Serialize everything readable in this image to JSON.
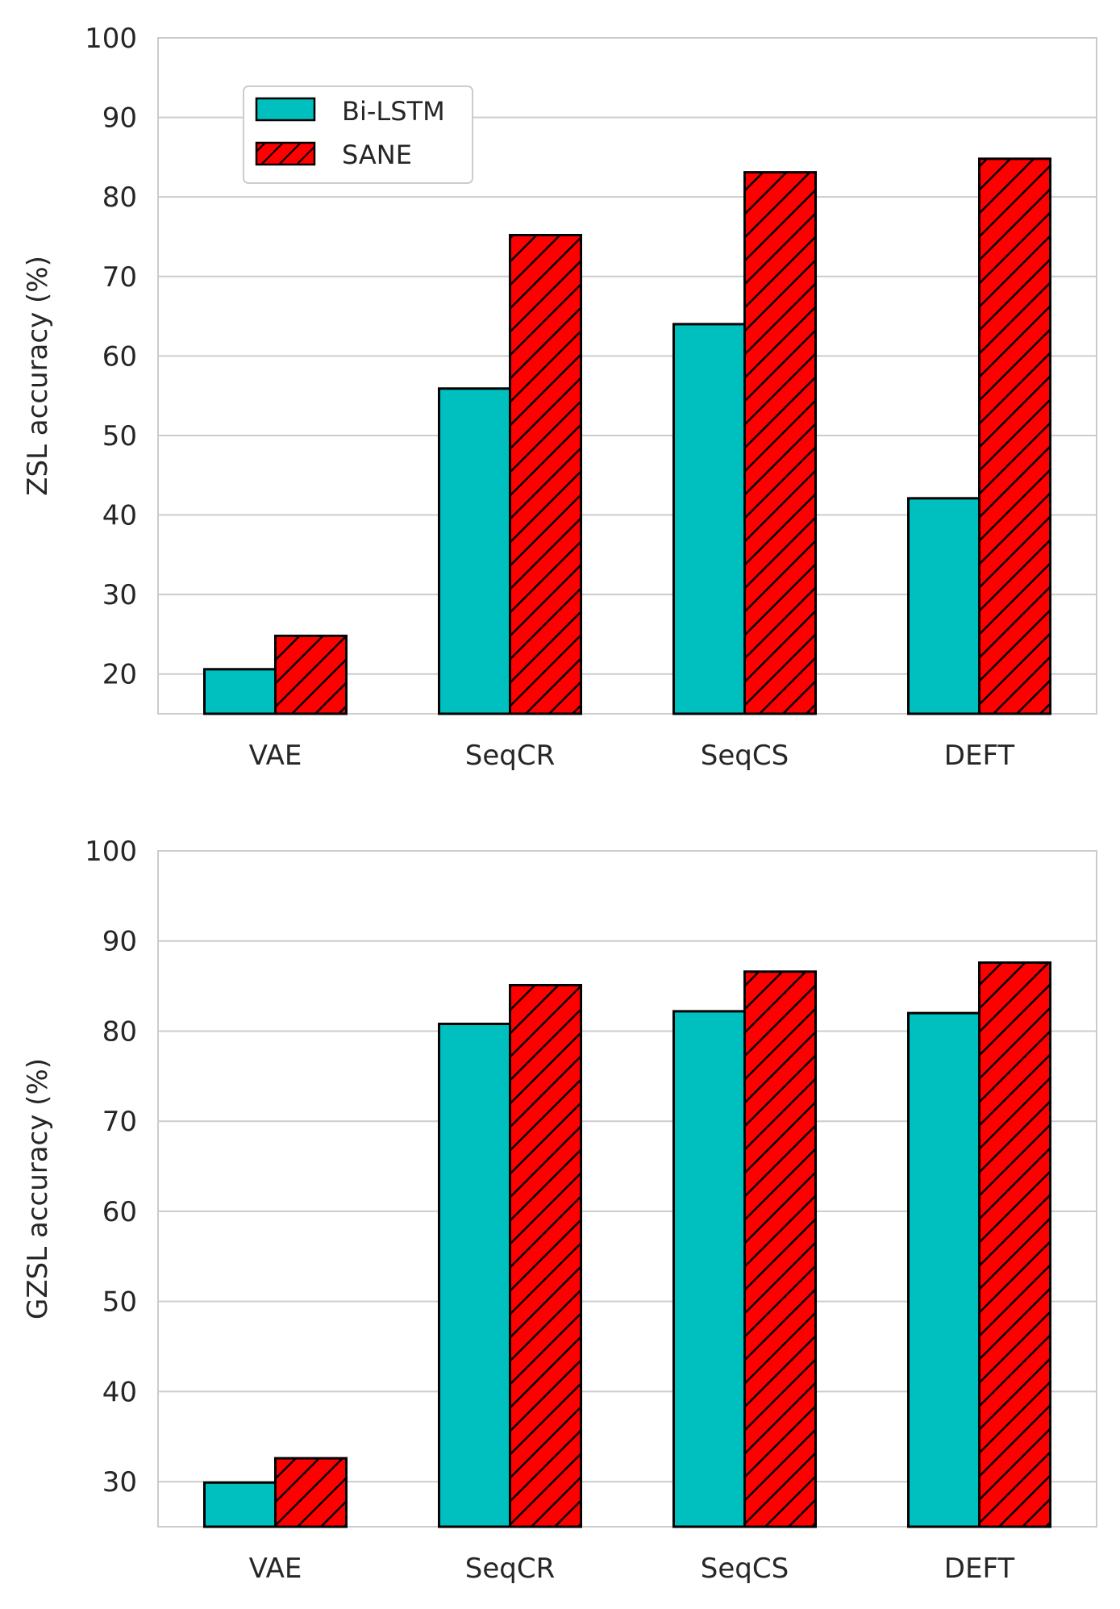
{
  "colors": {
    "bi_lstm": "#00bfbf",
    "sane": "#ff0000",
    "grid": "#cccccc",
    "text": "#262626"
  },
  "legend": {
    "entries": [
      "Bi-LSTM",
      "SANE"
    ],
    "placement": "upper-left"
  },
  "chart_data": [
    {
      "type": "bar",
      "categories": [
        "VAE",
        "SeqCR",
        "SeqCS",
        "DEFT"
      ],
      "series": [
        {
          "name": "Bi-LSTM",
          "values": [
            20.6,
            55.9,
            64.0,
            42.1
          ],
          "hatch": "none"
        },
        {
          "name": "SANE",
          "values": [
            24.8,
            75.2,
            83.1,
            84.8
          ],
          "hatch": "diagonal"
        }
      ],
      "title": "",
      "xlabel": "",
      "ylabel": "ZSL accuracy (%)",
      "ylim": [
        15,
        100
      ],
      "yticks": [
        20,
        30,
        40,
        50,
        60,
        70,
        80,
        90,
        100
      ],
      "grid": true,
      "legend": "upper-left"
    },
    {
      "type": "bar",
      "categories": [
        "VAE",
        "SeqCR",
        "SeqCS",
        "DEFT"
      ],
      "series": [
        {
          "name": "Bi-LSTM",
          "values": [
            29.9,
            80.8,
            82.2,
            82.0
          ],
          "hatch": "none"
        },
        {
          "name": "SANE",
          "values": [
            32.6,
            85.1,
            86.6,
            87.6
          ],
          "hatch": "diagonal"
        }
      ],
      "title": "",
      "xlabel": "",
      "ylabel": "GZSL accuracy (%)",
      "ylim": [
        25,
        100
      ],
      "yticks": [
        30,
        40,
        50,
        60,
        70,
        80,
        90,
        100
      ],
      "grid": true,
      "legend": "none"
    }
  ]
}
